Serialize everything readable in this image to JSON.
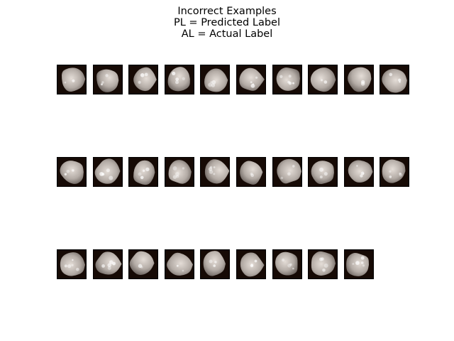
{
  "figure": {
    "title_lines": [
      "Incorrect Examples",
      "PL = Predicted Label",
      "AL = Actual Label"
    ]
  },
  "grid": {
    "rows": [
      10,
      10,
      9
    ],
    "thumbnail_subject": "grayscale cell nucleus microscopy crop",
    "colors": {
      "thumbnail_background": "#160a05",
      "nucleus_light": "#e4ddd7",
      "nucleus_mid": "#b4aca6",
      "nucleus_dark": "#6f6762",
      "frame": "#000000"
    }
  }
}
